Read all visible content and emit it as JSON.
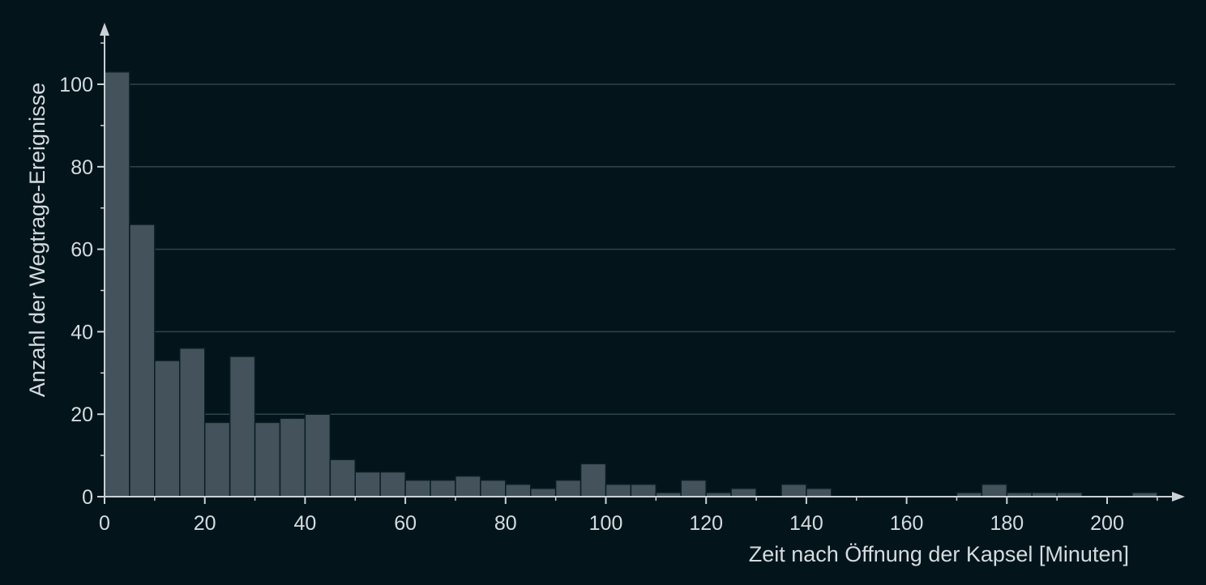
{
  "chart_data": {
    "type": "bar",
    "histogram": true,
    "bin_width": 5,
    "x": [
      0,
      5,
      10,
      15,
      20,
      25,
      30,
      35,
      40,
      45,
      50,
      55,
      60,
      65,
      70,
      75,
      80,
      85,
      90,
      95,
      100,
      105,
      110,
      115,
      120,
      125,
      130,
      135,
      140,
      145,
      150,
      155,
      160,
      165,
      170,
      175,
      180,
      185,
      190,
      195,
      200,
      205
    ],
    "values": [
      103,
      66,
      33,
      36,
      18,
      34,
      18,
      19,
      20,
      9,
      6,
      6,
      4,
      4,
      5,
      4,
      3,
      2,
      4,
      8,
      3,
      3,
      1,
      4,
      1,
      2,
      0,
      3,
      2,
      0,
      0,
      0,
      0,
      0,
      1,
      3,
      1,
      1,
      1,
      0,
      0,
      1
    ],
    "title": "",
    "xlabel": "Zeit nach Öffnung der Kapsel [Minuten]",
    "ylabel": "Anzahl der Wegtrage-Ereignisse",
    "xlim": [
      0,
      215
    ],
    "ylim": [
      0,
      115
    ],
    "x_ticks": [
      0,
      20,
      40,
      60,
      80,
      100,
      120,
      140,
      160,
      180,
      200
    ],
    "y_ticks": [
      0,
      20,
      40,
      60,
      80,
      100
    ],
    "grid": "horizontal",
    "colors": {
      "background": "#03151b",
      "bar_fill": "#44535b",
      "bar_stroke": "#0a1e25",
      "grid": "#2f454c",
      "axis": "#c9d1d5",
      "text": "#d4dbdf"
    }
  }
}
